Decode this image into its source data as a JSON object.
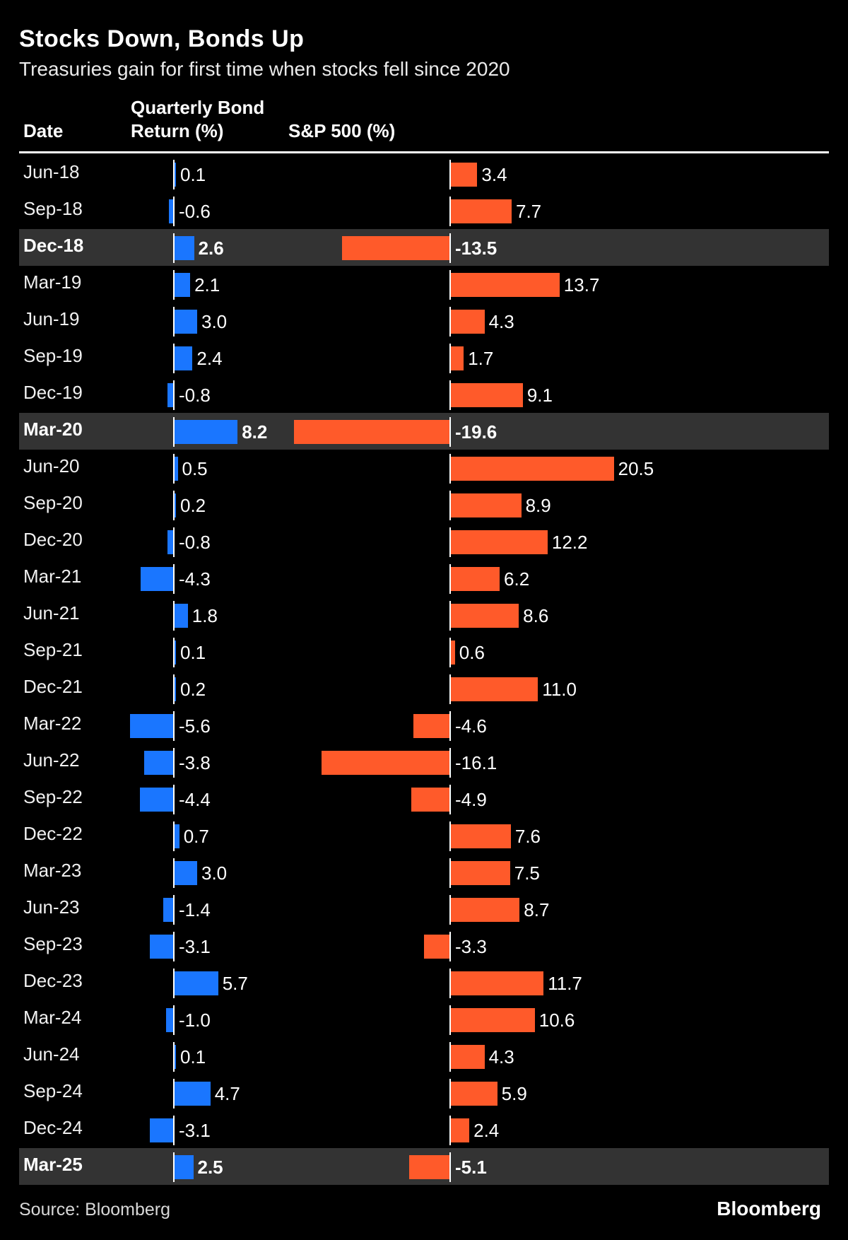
{
  "chart_data": {
    "type": "bar",
    "title": "Stocks Down, Bonds Up",
    "subtitle": "Treasuries gain for first time when stocks fell since 2020",
    "columns": [
      "Date",
      "Quarterly Bond Return (%)",
      "S&P 500 (%)"
    ],
    "categories": [
      "Jun-18",
      "Sep-18",
      "Dec-18",
      "Mar-19",
      "Jun-19",
      "Sep-19",
      "Dec-19",
      "Mar-20",
      "Jun-20",
      "Sep-20",
      "Dec-20",
      "Mar-21",
      "Jun-21",
      "Sep-21",
      "Dec-21",
      "Mar-22",
      "Jun-22",
      "Sep-22",
      "Dec-22",
      "Mar-23",
      "Jun-23",
      "Sep-23",
      "Dec-23",
      "Mar-24",
      "Jun-24",
      "Sep-24",
      "Dec-24",
      "Mar-25"
    ],
    "series": [
      {
        "name": "Quarterly Bond Return (%)",
        "color": "#1a76ff",
        "values": [
          0.1,
          -0.6,
          2.6,
          2.1,
          3.0,
          2.4,
          -0.8,
          8.2,
          0.5,
          0.2,
          -0.8,
          -4.3,
          1.8,
          0.1,
          0.2,
          -5.6,
          -3.8,
          -4.4,
          0.7,
          3.0,
          -1.4,
          -3.1,
          5.7,
          -1.0,
          0.1,
          4.7,
          -3.1,
          2.5
        ]
      },
      {
        "name": "S&P 500 (%)",
        "color": "#ff5a2a",
        "values": [
          3.4,
          7.7,
          -13.5,
          13.7,
          4.3,
          1.7,
          9.1,
          -19.6,
          20.5,
          8.9,
          12.2,
          6.2,
          8.6,
          0.6,
          11.0,
          -4.6,
          -16.1,
          -4.9,
          7.6,
          7.5,
          8.7,
          -3.3,
          11.7,
          10.6,
          4.3,
          5.9,
          2.4,
          -5.1
        ]
      }
    ],
    "highlighted": [
      "Dec-18",
      "Mar-20",
      "Mar-25"
    ],
    "legend": "none",
    "grid": false
  },
  "footer": {
    "source": "Source: Bloomberg",
    "brand": "Bloomberg"
  }
}
